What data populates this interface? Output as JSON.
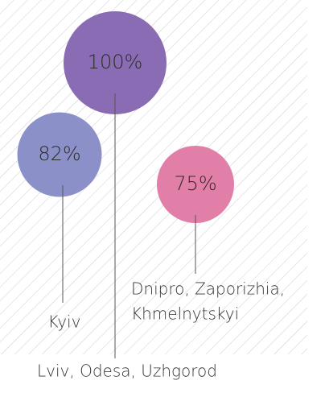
{
  "chart_data": {
    "type": "bubble",
    "categories": [
      [
        "Lviv, Odesa, Uzhgorod"
      ],
      [
        "Kyiv"
      ],
      [
        "Dnipro, Zaporizhia,",
        "Khmelnytskyi"
      ]
    ],
    "values": [
      100,
      82,
      75
    ],
    "value_labels": [
      "100%",
      "82%",
      "75%"
    ],
    "colors": [
      "#8a6cb4",
      "#8c90c9",
      "#e27fa9"
    ]
  }
}
